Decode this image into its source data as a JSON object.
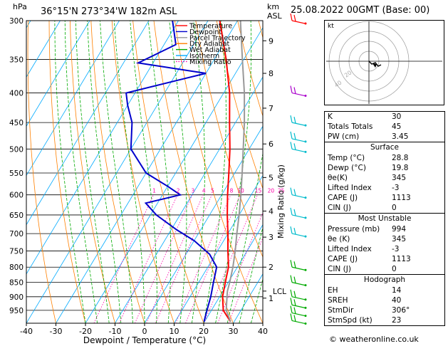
{
  "header": {
    "pressure_unit": "hPa",
    "location": "36°15'N  273°34'W  182m  ASL",
    "height_unit_line1": "km",
    "height_unit_line2": "ASL",
    "datetime": "25.08.2022  00GMT  (Base: 00)"
  },
  "chart_data": {
    "type": "line",
    "subtype": "skew-T log-P",
    "xlabel": "Dewpoint / Temperature (°C)",
    "right_axis_label": "Mixing Ratio (g/kg)",
    "x_range": [
      -40,
      40
    ],
    "x_ticks": [
      -40,
      -30,
      -20,
      -10,
      0,
      10,
      20,
      30,
      40
    ],
    "pressure_range": [
      300,
      1000
    ],
    "pressure_ticks": [
      300,
      350,
      400,
      450,
      500,
      550,
      600,
      650,
      700,
      750,
      800,
      850,
      900,
      950
    ],
    "height_ticks": [
      {
        "km": "9",
        "p": 325
      },
      {
        "km": "8",
        "p": 370
      },
      {
        "km": "7",
        "p": 425
      },
      {
        "km": "6",
        "p": 490
      },
      {
        "km": "5",
        "p": 560
      },
      {
        "km": "4",
        "p": 640
      },
      {
        "km": "3",
        "p": 710
      },
      {
        "km": "2",
        "p": 800
      },
      {
        "km": "1",
        "p": 905
      }
    ],
    "lcl": {
      "label": "LCL",
      "p": 880
    },
    "mixing_ratio_labels": [
      "1",
      "2",
      "3",
      "4",
      "5",
      "8",
      "10",
      "15",
      "20",
      "25"
    ],
    "legend": {
      "position": "top-left",
      "entries": [
        {
          "name": "Temperature",
          "color": "#ff0000"
        },
        {
          "name": "Dewpoint",
          "color": "#0000cc"
        },
        {
          "name": "Parcel Trajectory",
          "color": "#999999"
        },
        {
          "name": "Dry Adiabat",
          "color": "#ff8000"
        },
        {
          "name": "Wet Adiabat",
          "color": "#00aa00"
        },
        {
          "name": "Isotherm",
          "color": "#00aaff"
        },
        {
          "name": "Mixing Ratio",
          "color": "#ff00aa"
        }
      ]
    },
    "series": [
      {
        "name": "Temperature",
        "color": "#ff0000",
        "points": [
          {
            "p": 994,
            "t": 28.8
          },
          {
            "p": 950,
            "t": 24
          },
          {
            "p": 900,
            "t": 21
          },
          {
            "p": 850,
            "t": 19
          },
          {
            "p": 800,
            "t": 17
          },
          {
            "p": 750,
            "t": 13.5
          },
          {
            "p": 700,
            "t": 10
          },
          {
            "p": 650,
            "t": 6
          },
          {
            "p": 600,
            "t": 2
          },
          {
            "p": 550,
            "t": -2
          },
          {
            "p": 500,
            "t": -6.5
          },
          {
            "p": 450,
            "t": -12
          },
          {
            "p": 400,
            "t": -18
          },
          {
            "p": 350,
            "t": -26
          },
          {
            "p": 300,
            "t": -36
          }
        ]
      },
      {
        "name": "Dewpoint",
        "color": "#0000cc",
        "points": [
          {
            "p": 994,
            "t": 19.8
          },
          {
            "p": 950,
            "t": 18.5
          },
          {
            "p": 900,
            "t": 17
          },
          {
            "p": 850,
            "t": 15
          },
          {
            "p": 800,
            "t": 13
          },
          {
            "p": 760,
            "t": 8
          },
          {
            "p": 720,
            "t": 0
          },
          {
            "p": 690,
            "t": -8
          },
          {
            "p": 650,
            "t": -18
          },
          {
            "p": 620,
            "t": -24
          },
          {
            "p": 600,
            "t": -14
          },
          {
            "p": 580,
            "t": -20
          },
          {
            "p": 550,
            "t": -30
          },
          {
            "p": 500,
            "t": -40
          },
          {
            "p": 450,
            "t": -45
          },
          {
            "p": 420,
            "t": -50
          },
          {
            "p": 400,
            "t": -53
          },
          {
            "p": 370,
            "t": -30
          },
          {
            "p": 355,
            "t": -55
          },
          {
            "p": 330,
            "t": -46
          },
          {
            "p": 300,
            "t": -52
          }
        ]
      },
      {
        "name": "Parcel Trajectory",
        "color": "#999999",
        "points": [
          {
            "p": 994,
            "t": 28.8
          },
          {
            "p": 950,
            "t": 25
          },
          {
            "p": 900,
            "t": 22.5
          },
          {
            "p": 880,
            "t": 21.5
          },
          {
            "p": 850,
            "t": 20.5
          },
          {
            "p": 800,
            "t": 18.5
          },
          {
            "p": 750,
            "t": 16
          },
          {
            "p": 700,
            "t": 13
          },
          {
            "p": 650,
            "t": 10
          },
          {
            "p": 600,
            "t": 6.5
          },
          {
            "p": 550,
            "t": 2.5
          },
          {
            "p": 500,
            "t": -2
          },
          {
            "p": 450,
            "t": -7
          },
          {
            "p": 400,
            "t": -13
          },
          {
            "p": 350,
            "t": -20.5
          },
          {
            "p": 300,
            "t": -29
          }
        ]
      }
    ],
    "wind_barbs_pressures": [
      300,
      400,
      450,
      480,
      500,
      600,
      650,
      700,
      800,
      850,
      900,
      930,
      960,
      990
    ]
  },
  "hodograph": {
    "label": "kt",
    "ring_labels": [
      "20",
      "40"
    ]
  },
  "indices": {
    "k": {
      "label": "K",
      "value": "30"
    },
    "tt": {
      "label": "Totals Totals",
      "value": "45"
    },
    "pw": {
      "label": "PW (cm)",
      "value": "3.45"
    }
  },
  "surface": {
    "title": "Surface",
    "temp": {
      "label": "Temp (°C)",
      "value": "28.8"
    },
    "dewp": {
      "label": "Dewp (°C)",
      "value": "19.8"
    },
    "theta_e": {
      "label": "θe(K)",
      "value": "345"
    },
    "li": {
      "label": "Lifted Index",
      "value": "-3"
    },
    "cape": {
      "label": "CAPE (J)",
      "value": "1113"
    },
    "cin": {
      "label": "CIN (J)",
      "value": "0"
    }
  },
  "most_unstable": {
    "title": "Most Unstable",
    "pressure": {
      "label": "Pressure (mb)",
      "value": "994"
    },
    "theta_e": {
      "label": "θe (K)",
      "value": "345"
    },
    "li": {
      "label": "Lifted Index",
      "value": "-3"
    },
    "cape": {
      "label": "CAPE (J)",
      "value": "1113"
    },
    "cin": {
      "label": "CIN (J)",
      "value": "0"
    }
  },
  "hodo_table": {
    "title": "Hodograph",
    "eh": {
      "label": "EH",
      "value": "14"
    },
    "srh": {
      "label": "SREH",
      "value": "40"
    },
    "stmdir": {
      "label": "StmDir",
      "value": "306°"
    },
    "stmspd": {
      "label": "StmSpd (kt)",
      "value": "23"
    }
  },
  "copyright": "© weatheronline.co.uk",
  "colors": {
    "temperature": "#ff0000",
    "dewpoint": "#0000cc",
    "parcel": "#999999",
    "dry_adiabat": "#ff8000",
    "wet_adiabat": "#00aa00",
    "isotherm": "#00aaff",
    "mixing_ratio": "#ff00aa"
  }
}
